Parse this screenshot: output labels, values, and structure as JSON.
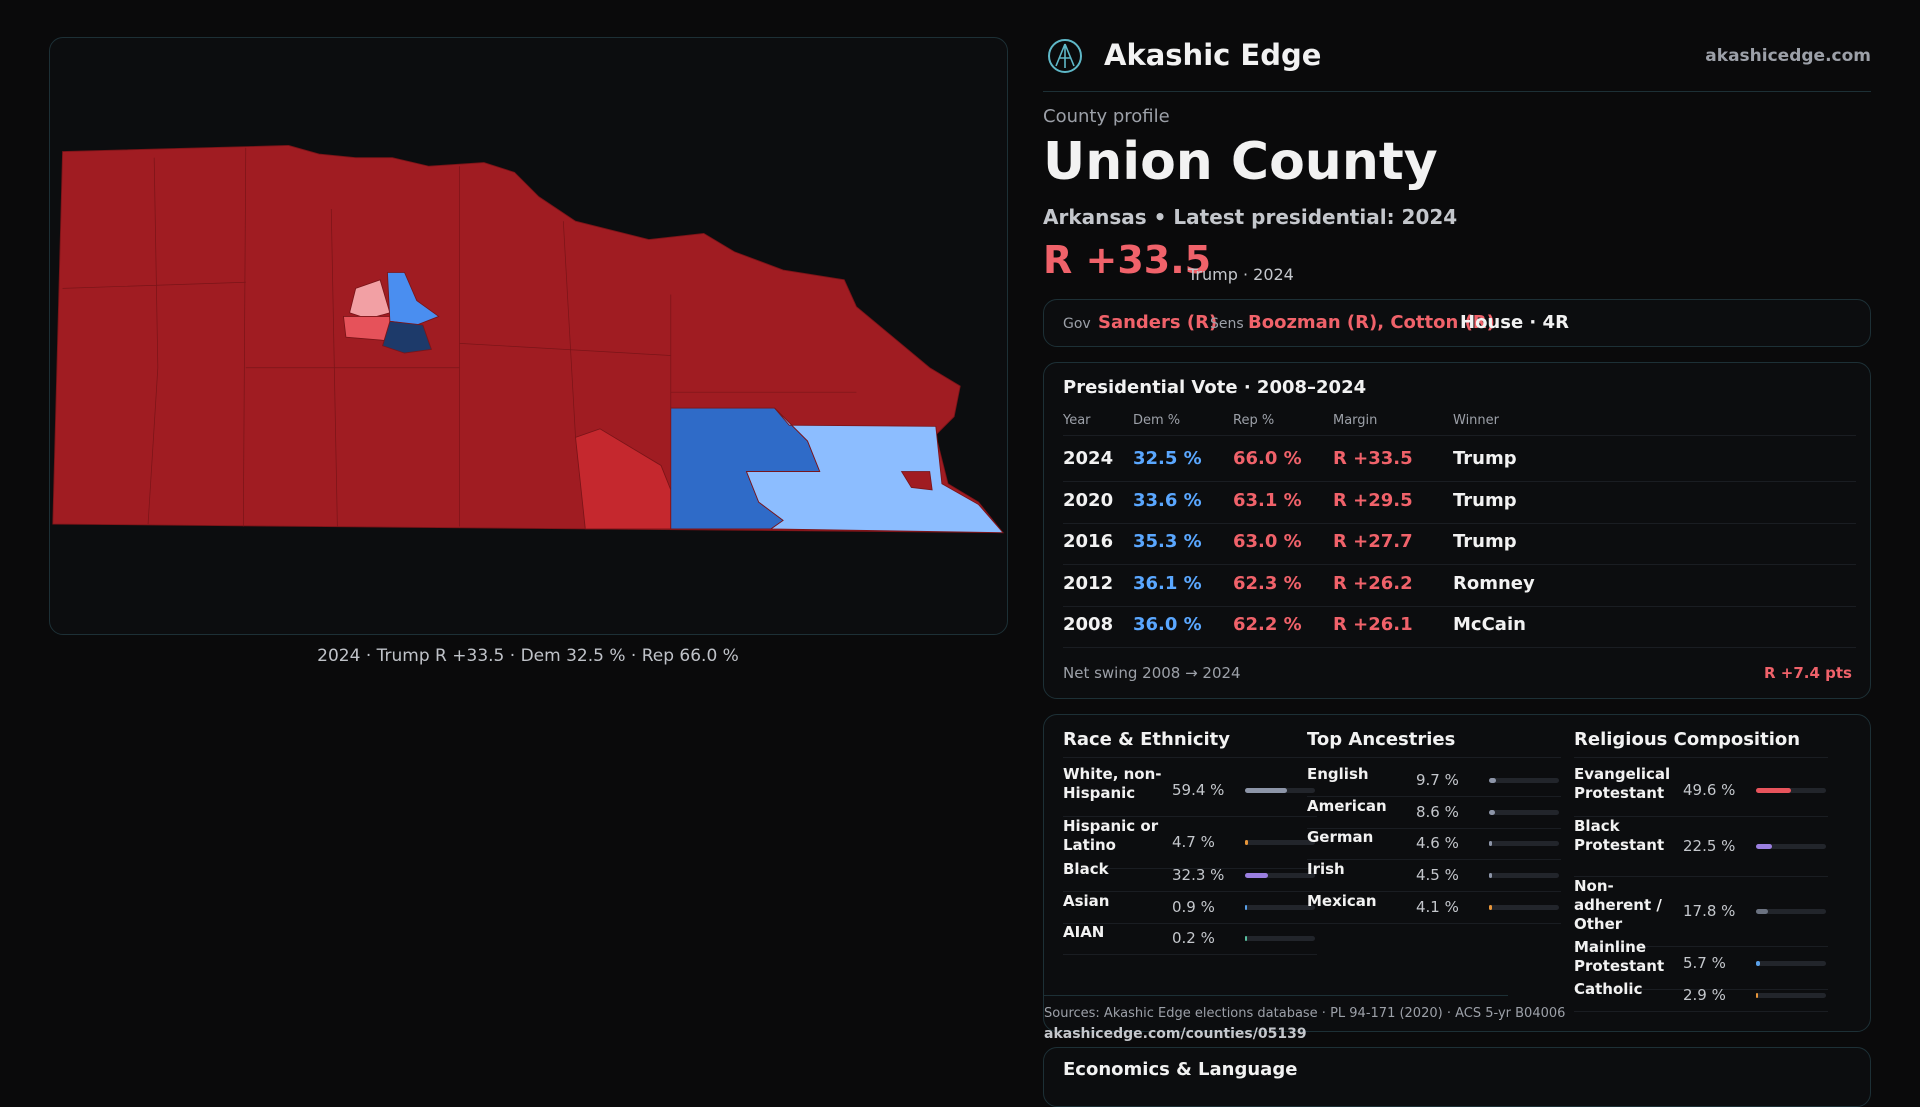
{
  "header": {
    "brand": "Akashic Edge",
    "site": "akashicedge.com"
  },
  "map": {
    "caption": "2024 · Trump R +33.5 · Dem 32.5 % · Rep 66.0 %"
  },
  "profile": {
    "kicker": "County profile",
    "name": "Union County",
    "subtitle": "Arkansas • Latest presidential: 2024",
    "margin": "R +33.5",
    "margin_note": "Trump · 2024"
  },
  "officials": {
    "gov_label": "Gov",
    "gov": "Sanders (R)",
    "sens_label": "Sens",
    "sens": "Boozman (R), Cotton (R)",
    "house": "House · 4R"
  },
  "presidential": {
    "title": "Presidential Vote · 2008–2024",
    "columns": [
      "Year",
      "Dem %",
      "Rep %",
      "Margin",
      "Winner"
    ],
    "rows": [
      [
        "2024",
        "32.5 %",
        "66.0 %",
        "R +33.5",
        "Trump"
      ],
      [
        "2020",
        "33.6 %",
        "63.1 %",
        "R +29.5",
        "Trump"
      ],
      [
        "2016",
        "35.3 %",
        "63.0 %",
        "R +27.7",
        "Trump"
      ],
      [
        "2012",
        "36.1 %",
        "62.3 %",
        "R +26.2",
        "Romney"
      ],
      [
        "2008",
        "36.0 %",
        "62.2 %",
        "R +26.1",
        "McCain"
      ]
    ],
    "swing_label": "Net swing 2008 → 2024",
    "swing_value": "R +7.4 pts"
  },
  "demographics": {
    "groups": [
      {
        "title": "Race & Ethnicity",
        "items": [
          {
            "label": "White, non-Hispanic",
            "value": 59.4,
            "value_label": "59.4 %",
            "color": "#8d95a8"
          },
          {
            "label": "Hispanic or Latino",
            "value": 4.7,
            "value_label": "4.7 %",
            "color": "#e8963a"
          },
          {
            "label": "Black",
            "value": 32.3,
            "value_label": "32.3 %",
            "color": "#9b7fe0"
          },
          {
            "label": "Asian",
            "value": 0.9,
            "value_label": "0.9 %",
            "color": "#5aa0e8"
          },
          {
            "label": "AIAN",
            "value": 0.2,
            "value_label": "0.2 %",
            "color": "#5ac0a0"
          }
        ]
      },
      {
        "title": "Top Ancestries",
        "items": [
          {
            "label": "English",
            "value": 9.7,
            "value_label": "9.7 %",
            "color": "#8d95a8"
          },
          {
            "label": "American",
            "value": 8.6,
            "value_label": "8.6 %",
            "color": "#8d95a8"
          },
          {
            "label": "German",
            "value": 4.6,
            "value_label": "4.6 %",
            "color": "#8d95a8"
          },
          {
            "label": "Irish",
            "value": 4.5,
            "value_label": "4.5 %",
            "color": "#8d95a8"
          },
          {
            "label": "Mexican",
            "value": 4.1,
            "value_label": "4.1 %",
            "color": "#e8963a"
          }
        ]
      },
      {
        "title": "Religious Composition",
        "items": [
          {
            "label": "Evangelical Protestant",
            "value": 49.6,
            "value_label": "49.6 %",
            "color": "#e8545c"
          },
          {
            "label": "Black Protestant",
            "value": 22.5,
            "value_label": "22.5 %",
            "color": "#9b7fe0"
          },
          {
            "label": "Non-adherent / Other",
            "value": 17.8,
            "value_label": "17.8 %",
            "color": "#6b7280"
          },
          {
            "label": "Mainline Protestant",
            "value": 5.7,
            "value_label": "5.7 %",
            "color": "#5aa0e8"
          },
          {
            "label": "Catholic",
            "value": 2.9,
            "value_label": "2.9 %",
            "color": "#e8963a"
          }
        ]
      }
    ]
  },
  "sources": {
    "text": "Sources: Akashic Edge elections database · PL 94-171 (2020) · ACS 5-yr B04006",
    "url": "akashicedge.com/counties/05139"
  },
  "economics": {
    "title": "Economics & Language"
  }
}
